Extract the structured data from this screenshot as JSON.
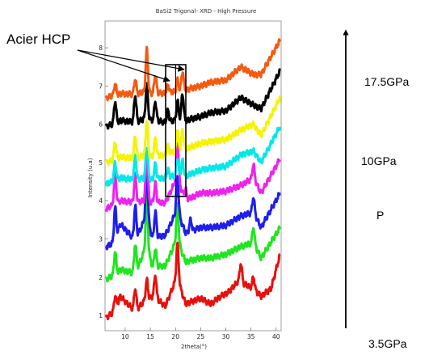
{
  "chart_data": {
    "type": "line",
    "title": "BaSi2 Trigonal- XRD  - High Pressure",
    "xlabel": "2theta(°)",
    "ylabel": "Intensity (u.a)",
    "xlim": [
      6,
      41
    ],
    "ylim": [
      0.6,
      8.7
    ],
    "x_ticks": [
      "10",
      "15",
      "20",
      "25",
      "30",
      "35",
      "40"
    ],
    "y_ticks": [
      "1",
      "2",
      "3",
      "4",
      "5",
      "6",
      "7",
      "8"
    ],
    "grid": false,
    "legend": "none",
    "series": [
      {
        "color": "#e8100c",
        "x": [
          6.2,
          8,
          9,
          12,
          14,
          15.5,
          18,
          20.3,
          22,
          25,
          27,
          29,
          30.5,
          32.5,
          35.5,
          37,
          39,
          40.8
        ],
        "y": [
          0.95,
          1.1,
          1.5,
          1.1,
          1.4,
          1.5,
          1.25,
          2.0,
          1.3,
          1.45,
          1.3,
          1.5,
          1.6,
          1.9,
          1.7,
          1.5,
          1.7,
          2.6
        ]
      },
      {
        "color": "#1ee61e",
        "x": [
          6.2,
          8,
          9,
          12,
          14.2,
          15.5,
          18,
          20.3,
          22,
          25,
          27,
          30,
          33,
          35.5,
          37,
          40.8
        ],
        "y": [
          1.95,
          2.05,
          2.2,
          2.1,
          2.8,
          2.25,
          2.3,
          3.0,
          2.4,
          2.5,
          2.5,
          2.6,
          2.8,
          2.9,
          2.5,
          3.3
        ]
      },
      {
        "color": "#1e1eee",
        "x": [
          6.2,
          8,
          9,
          12,
          14.2,
          15.5,
          18,
          20.3,
          22,
          25,
          27,
          30,
          33,
          35.5,
          37,
          40.8
        ],
        "y": [
          2.8,
          2.9,
          3.4,
          2.95,
          3.6,
          3.0,
          3.1,
          3.75,
          3.15,
          3.3,
          3.3,
          3.35,
          3.6,
          3.7,
          3.3,
          4.2
        ]
      },
      {
        "color": "#ee22ee",
        "x": [
          6.2,
          8,
          9,
          12,
          14.2,
          15.5,
          18,
          20.3,
          22,
          25,
          27,
          30,
          33,
          35.5,
          37,
          40.8
        ],
        "y": [
          3.8,
          3.9,
          4.0,
          3.95,
          4.0,
          3.95,
          3.95,
          4.6,
          4.0,
          4.2,
          4.2,
          4.25,
          4.4,
          4.6,
          4.2,
          5.1
        ]
      },
      {
        "color": "#00e8e8",
        "x": [
          6.2,
          8,
          9,
          12,
          14.2,
          15.5,
          18,
          20.3,
          22,
          25,
          27,
          30,
          33,
          35.5,
          37,
          40.8
        ],
        "y": [
          4.45,
          4.5,
          4.6,
          4.55,
          4.6,
          4.55,
          4.6,
          4.65,
          4.65,
          4.8,
          4.85,
          4.9,
          5.2,
          5.3,
          5.0,
          5.95
        ]
      },
      {
        "color": "#f4f400",
        "x": [
          6.2,
          8,
          9,
          12,
          14.2,
          15.5,
          18,
          20.3,
          22,
          25,
          27,
          30,
          33,
          35.5,
          37,
          40.8
        ],
        "y": [
          5.0,
          5.05,
          5.15,
          5.1,
          5.2,
          5.15,
          5.2,
          5.3,
          5.35,
          5.5,
          5.55,
          5.6,
          5.85,
          6.0,
          5.7,
          6.7
        ]
      },
      {
        "color": "#000000",
        "x": [
          6.2,
          8,
          9,
          12,
          14.2,
          15.5,
          18,
          20.3,
          22,
          25,
          27,
          30,
          33,
          35.5,
          37,
          40.8
        ],
        "y": [
          5.95,
          6.0,
          6.1,
          6.05,
          6.15,
          6.1,
          6.05,
          6.1,
          6.1,
          6.2,
          6.3,
          6.35,
          6.7,
          6.5,
          6.4,
          7.4
        ]
      },
      {
        "color": "#f45a10",
        "x": [
          6.2,
          8,
          9,
          12,
          14.2,
          15.5,
          18,
          20.3,
          22,
          25,
          27,
          30,
          33,
          35.5,
          37,
          40.8
        ],
        "y": [
          6.7,
          6.75,
          6.8,
          6.78,
          6.85,
          6.8,
          6.82,
          6.85,
          6.9,
          7.0,
          7.1,
          7.15,
          7.5,
          7.3,
          7.3,
          8.2
        ]
      }
    ],
    "peaks": [
      {
        "series": 0,
        "x": [
          8,
          12,
          14.3,
          16,
          20.4,
          33,
          35.5
        ],
        "h": [
          0.4,
          0.6,
          0.5,
          0.6,
          0.9,
          0.5,
          0.3
        ]
      },
      {
        "series": 1,
        "x": [
          8,
          12,
          14.3,
          16,
          20.4,
          35.5
        ],
        "h": [
          0.6,
          0.75,
          1.3,
          0.5,
          0.9,
          0.4
        ]
      },
      {
        "series": 2,
        "x": [
          8,
          12,
          14.3,
          16,
          20.4,
          23,
          35.5
        ],
        "h": [
          0.9,
          0.9,
          1.3,
          0.7,
          0.9,
          0.3,
          0.4
        ]
      },
      {
        "series": 3,
        "x": [
          8,
          12,
          14.3,
          16,
          20.4,
          22,
          35.5
        ],
        "h": [
          0.8,
          0.7,
          1.25,
          0.5,
          1.0,
          0.3,
          0.35
        ]
      },
      {
        "series": 4,
        "x": [
          8,
          12,
          14.3,
          16,
          18.5,
          20.4,
          21.4
        ],
        "h": [
          0.5,
          0.6,
          0.8,
          0.4,
          0.2,
          0.45,
          0.4
        ]
      },
      {
        "series": 5,
        "x": [
          8,
          12,
          14.3,
          16,
          18.5,
          20.4,
          21.4
        ],
        "h": [
          0.5,
          0.6,
          0.9,
          0.5,
          0.2,
          0.55,
          0.5
        ]
      },
      {
        "series": 6,
        "x": [
          8,
          12,
          14.3,
          16,
          18.5,
          20.4,
          21.4
        ],
        "h": [
          0.6,
          0.7,
          0.9,
          0.5,
          0.3,
          0.5,
          0.7
        ]
      },
      {
        "series": 7,
        "x": [
          8,
          12,
          14.3,
          16,
          18.5,
          20.4,
          21.4
        ],
        "h": [
          0.3,
          0.4,
          1.1,
          0.5,
          0.2,
          0.3,
          0.5
        ]
      }
    ]
  },
  "annotation": {
    "label": "Acier HCP"
  },
  "pressure_axis": {
    "high_label": "17.5GPa",
    "mid_label": "10GPa",
    "axis_label": "P",
    "low_label": "3.5GPa"
  }
}
